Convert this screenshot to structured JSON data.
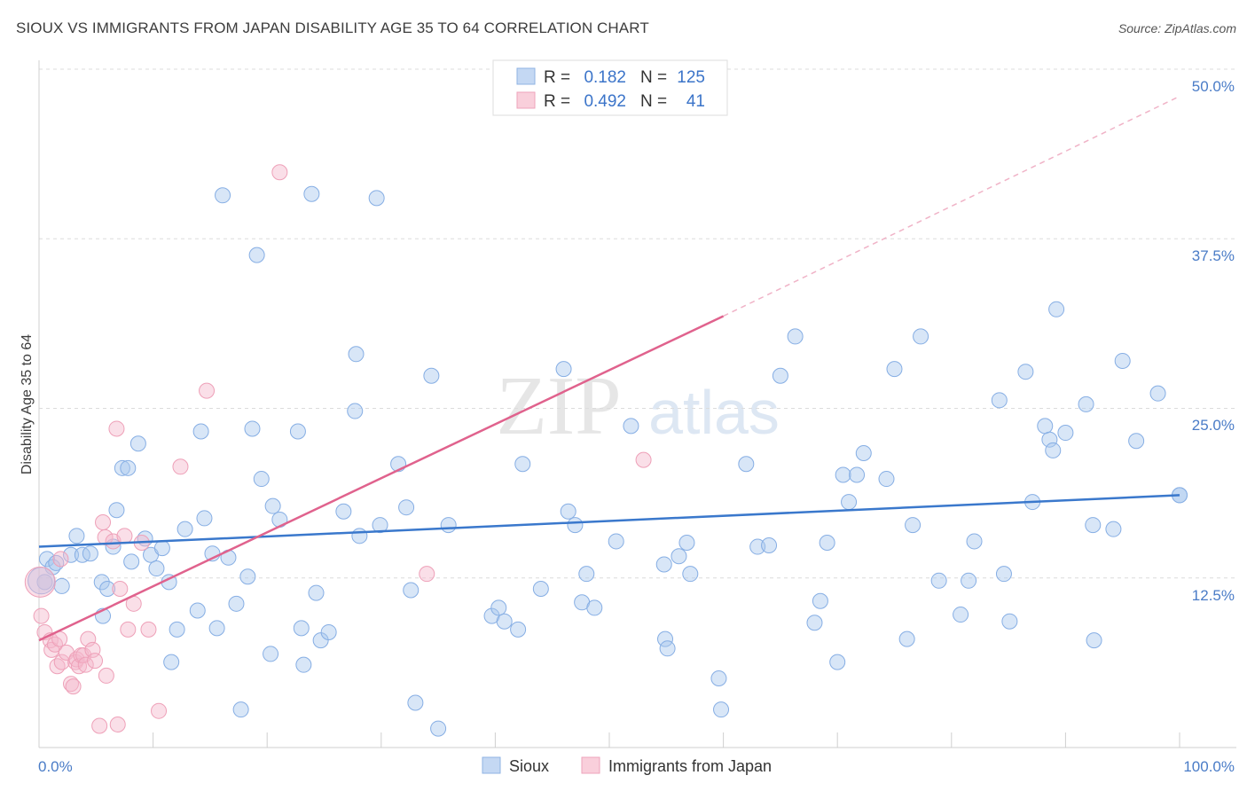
{
  "header": {
    "title": "SIOUX VS IMMIGRANTS FROM JAPAN DISABILITY AGE 35 TO 64 CORRELATION CHART",
    "source": "Source: ZipAtlas.com"
  },
  "watermark": {
    "zip": "ZIP",
    "atlas": "atlas"
  },
  "legend_top": {
    "rows": [
      {
        "r_label": "R =",
        "r_value": "0.182",
        "n_label": "N =",
        "n_value": "125",
        "color": "#a9c7ee"
      },
      {
        "r_label": "R =",
        "r_value": "0.492",
        "n_label": "N =",
        "n_value": "41",
        "color": "#f5b8cb"
      }
    ]
  },
  "legend_bottom": [
    {
      "label": "Sioux",
      "color": "#a9c7ee"
    },
    {
      "label": "Immigrants from Japan",
      "color": "#f5b8cb"
    }
  ],
  "colors": {
    "sioux": "#3a78cc",
    "japan": "#e0628d",
    "sioux_fill": "#a9c7ee",
    "japan_fill": "#f5b8cb"
  },
  "chart_data": {
    "type": "scatter",
    "ylabel": "Disability Age 35 to 64",
    "xlabel": "",
    "xlim": [
      0,
      100
    ],
    "ylim": [
      0,
      50
    ],
    "x_tick_labels": [
      "0.0%",
      "100.0%"
    ],
    "y_tick_labels": [
      "12.5%",
      "25.0%",
      "37.5%",
      "50.0%"
    ],
    "y_ticks": [
      12.5,
      25.0,
      37.5,
      50.0
    ],
    "grid": true,
    "series": [
      {
        "name": "Sioux",
        "trend": {
          "x0": 0,
          "y0": 14.8,
          "x1": 100,
          "y1": 18.6
        },
        "points": [
          [
            0.5,
            12.2
          ],
          [
            0.7,
            13.9
          ],
          [
            1.2,
            13.3
          ],
          [
            1.5,
            13.6
          ],
          [
            2.0,
            11.9
          ],
          [
            2.8,
            14.2
          ],
          [
            3.3,
            15.6
          ],
          [
            3.8,
            14.2
          ],
          [
            4.5,
            14.3
          ],
          [
            5.5,
            12.2
          ],
          [
            5.6,
            9.7
          ],
          [
            6.0,
            11.7
          ],
          [
            6.5,
            14.8
          ],
          [
            6.8,
            17.5
          ],
          [
            7.3,
            20.6
          ],
          [
            7.8,
            20.6
          ],
          [
            8.1,
            13.7
          ],
          [
            8.7,
            22.4
          ],
          [
            9.3,
            15.4
          ],
          [
            9.8,
            14.2
          ],
          [
            10.3,
            13.2
          ],
          [
            10.8,
            14.7
          ],
          [
            11.4,
            12.2
          ],
          [
            11.6,
            6.3
          ],
          [
            12.1,
            8.7
          ],
          [
            12.8,
            16.1
          ],
          [
            13.9,
            10.1
          ],
          [
            14.2,
            23.3
          ],
          [
            14.5,
            16.9
          ],
          [
            15.2,
            14.3
          ],
          [
            15.6,
            8.8
          ],
          [
            16.1,
            40.7
          ],
          [
            16.6,
            14.0
          ],
          [
            17.3,
            10.6
          ],
          [
            17.7,
            2.8
          ],
          [
            18.3,
            12.6
          ],
          [
            18.7,
            23.5
          ],
          [
            19.1,
            36.3
          ],
          [
            19.5,
            19.8
          ],
          [
            20.3,
            6.9
          ],
          [
            20.5,
            17.8
          ],
          [
            21.1,
            16.8
          ],
          [
            22.7,
            23.3
          ],
          [
            23.0,
            8.8
          ],
          [
            23.2,
            6.1
          ],
          [
            23.9,
            40.8
          ],
          [
            24.3,
            11.4
          ],
          [
            24.7,
            7.9
          ],
          [
            25.4,
            8.5
          ],
          [
            26.7,
            17.4
          ],
          [
            27.7,
            24.8
          ],
          [
            27.8,
            29.0
          ],
          [
            28.1,
            15.6
          ],
          [
            29.6,
            40.5
          ],
          [
            29.9,
            16.4
          ],
          [
            31.5,
            20.9
          ],
          [
            32.2,
            17.7
          ],
          [
            32.6,
            11.6
          ],
          [
            33.0,
            3.3
          ],
          [
            34.4,
            27.4
          ],
          [
            35.0,
            1.4
          ],
          [
            35.9,
            16.4
          ],
          [
            39.7,
            9.7
          ],
          [
            40.8,
            9.3
          ],
          [
            40.3,
            10.3
          ],
          [
            42.0,
            8.7
          ],
          [
            42.4,
            20.9
          ],
          [
            44.0,
            11.7
          ],
          [
            46.0,
            27.9
          ],
          [
            46.4,
            17.4
          ],
          [
            47.0,
            16.4
          ],
          [
            47.6,
            10.7
          ],
          [
            48.0,
            12.8
          ],
          [
            48.7,
            10.3
          ],
          [
            50.6,
            15.2
          ],
          [
            51.9,
            23.7
          ],
          [
            54.8,
            13.5
          ],
          [
            54.9,
            8.0
          ],
          [
            55.1,
            7.3
          ],
          [
            56.1,
            14.1
          ],
          [
            56.8,
            15.1
          ],
          [
            57.1,
            12.8
          ],
          [
            59.6,
            5.1
          ],
          [
            59.8,
            2.8
          ],
          [
            62.0,
            20.9
          ],
          [
            63.0,
            14.8
          ],
          [
            64.0,
            14.9
          ],
          [
            65.0,
            27.4
          ],
          [
            66.3,
            30.3
          ],
          [
            68.0,
            9.2
          ],
          [
            68.5,
            10.8
          ],
          [
            69.1,
            15.1
          ],
          [
            70.0,
            6.3
          ],
          [
            70.5,
            20.1
          ],
          [
            71.0,
            18.1
          ],
          [
            71.7,
            20.1
          ],
          [
            72.3,
            21.7
          ],
          [
            74.3,
            19.8
          ],
          [
            75.0,
            27.9
          ],
          [
            76.1,
            8.0
          ],
          [
            76.6,
            16.4
          ],
          [
            77.3,
            30.3
          ],
          [
            78.9,
            12.3
          ],
          [
            80.8,
            9.8
          ],
          [
            81.5,
            12.3
          ],
          [
            82.0,
            15.2
          ],
          [
            84.2,
            25.6
          ],
          [
            84.6,
            12.8
          ],
          [
            85.1,
            9.3
          ],
          [
            86.5,
            27.7
          ],
          [
            87.1,
            18.1
          ],
          [
            88.2,
            23.7
          ],
          [
            88.6,
            22.7
          ],
          [
            88.9,
            21.9
          ],
          [
            89.2,
            32.3
          ],
          [
            90.0,
            23.2
          ],
          [
            91.8,
            25.3
          ],
          [
            92.4,
            16.4
          ],
          [
            92.5,
            7.9
          ],
          [
            94.2,
            16.1
          ],
          [
            95.0,
            28.5
          ],
          [
            96.2,
            22.6
          ],
          [
            98.1,
            26.1
          ],
          [
            100.0,
            18.6
          ],
          [
            100.0,
            18.6
          ]
        ]
      },
      {
        "name": "Immigrants from Japan",
        "trend": {
          "x0": 0,
          "y0": 7.9,
          "x1": 60,
          "y1": 31.8,
          "dashed_to": {
            "x": 100,
            "y": 48.0
          }
        },
        "points": [
          [
            0.1,
            12.2
          ],
          [
            0.2,
            9.7
          ],
          [
            0.5,
            8.5
          ],
          [
            1.0,
            7.9
          ],
          [
            1.1,
            7.2
          ],
          [
            1.4,
            7.6
          ],
          [
            1.6,
            6.0
          ],
          [
            1.8,
            8.0
          ],
          [
            2.0,
            6.3
          ],
          [
            2.4,
            7.0
          ],
          [
            2.8,
            4.7
          ],
          [
            3.0,
            4.5
          ],
          [
            3.2,
            6.3
          ],
          [
            3.3,
            6.5
          ],
          [
            3.5,
            6.0
          ],
          [
            3.7,
            6.8
          ],
          [
            3.9,
            6.8
          ],
          [
            4.1,
            6.1
          ],
          [
            4.3,
            8.0
          ],
          [
            4.7,
            7.2
          ],
          [
            4.9,
            6.4
          ],
          [
            5.3,
            1.6
          ],
          [
            5.6,
            16.6
          ],
          [
            5.8,
            15.5
          ],
          [
            5.9,
            5.3
          ],
          [
            6.5,
            15.2
          ],
          [
            6.8,
            23.5
          ],
          [
            6.9,
            1.7
          ],
          [
            7.1,
            11.7
          ],
          [
            7.5,
            15.6
          ],
          [
            7.8,
            8.7
          ],
          [
            8.3,
            10.6
          ],
          [
            9.0,
            15.1
          ],
          [
            9.6,
            8.7
          ],
          [
            10.5,
            2.7
          ],
          [
            12.4,
            20.7
          ],
          [
            14.7,
            26.3
          ],
          [
            21.1,
            42.4
          ],
          [
            34.0,
            12.8
          ],
          [
            53.0,
            21.2
          ],
          [
            1.9,
            13.9
          ]
        ]
      }
    ]
  }
}
